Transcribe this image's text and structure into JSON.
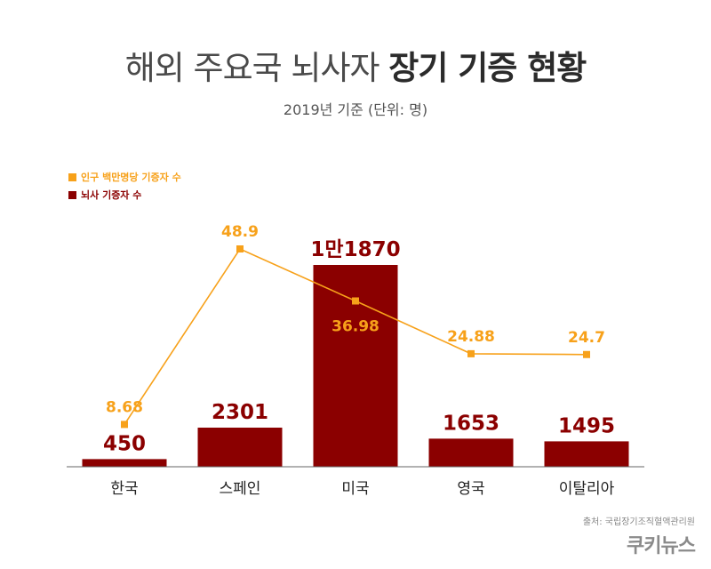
{
  "title_regular": "해외 주요국 뇌사자",
  "title_bold": "장기 기증 현황",
  "subtitle": "2019년 기준 (단위: 명)",
  "source": "출처: 국립장기조직혈액관리원",
  "brand": "쿠키뉴스",
  "colors": {
    "bar": "#8b0000",
    "line": "#f7a11a",
    "axis": "#666666"
  },
  "chart_data": {
    "type": "bar",
    "categories": [
      "한국",
      "스페인",
      "미국",
      "영국",
      "이탈리아"
    ],
    "legend_position": "top-left",
    "grid": false,
    "series": [
      {
        "name": "뇌사 기증자 수",
        "type": "bar",
        "values": [
          450,
          2301,
          11870,
          1653,
          1495
        ],
        "labels": [
          "450",
          "2301",
          "1만1870",
          "1653",
          "1495"
        ],
        "ylim": [
          0,
          11870
        ]
      },
      {
        "name": "인구 백만명당 기증자 수",
        "type": "line",
        "values": [
          8.68,
          48.9,
          36.98,
          24.88,
          24.7
        ],
        "labels": [
          "8.68",
          "48.9",
          "36.98",
          "24.88",
          "24.7"
        ],
        "ylim": [
          0,
          48.9
        ]
      }
    ]
  }
}
